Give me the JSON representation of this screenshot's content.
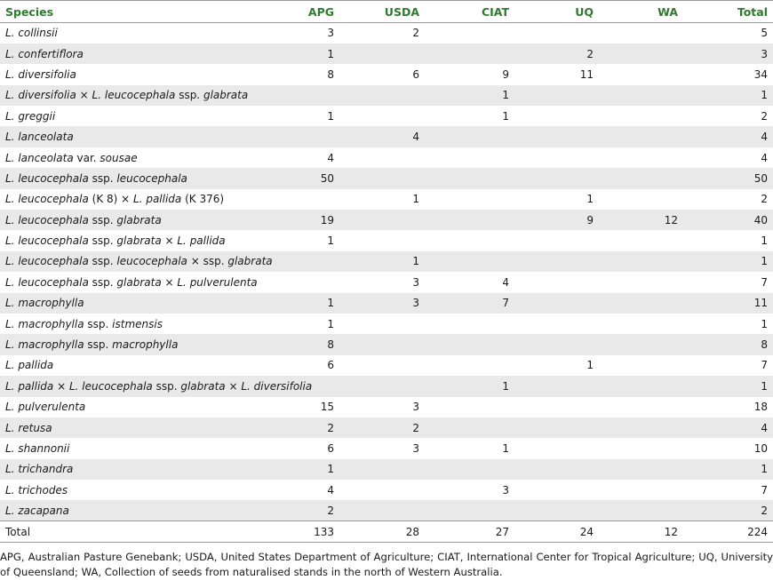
{
  "headers": [
    "Species",
    "APG",
    "USDA",
    "CIAT",
    "UQ",
    "WA",
    "Total"
  ],
  "rows": [
    {
      "name": [
        [
          "L. collinsii",
          "i"
        ]
      ],
      "values": [
        "3",
        "2",
        "",
        "",
        "",
        "5"
      ]
    },
    {
      "name": [
        [
          "L. confertiflora",
          "i"
        ]
      ],
      "values": [
        "1",
        "",
        "",
        "2",
        "",
        "3"
      ]
    },
    {
      "name": [
        [
          "L. diversifolia",
          "i"
        ]
      ],
      "values": [
        "8",
        "6",
        "9",
        "11",
        "",
        "34"
      ]
    },
    {
      "name": [
        [
          "L. diversifolia",
          "i"
        ],
        [
          " × ",
          "n"
        ],
        [
          "L. leucocephala",
          "i"
        ],
        [
          " ssp. ",
          "n"
        ],
        [
          "glabrata",
          "i"
        ]
      ],
      "values": [
        "",
        "",
        "1",
        "",
        "",
        "1"
      ]
    },
    {
      "name": [
        [
          "L. greggii",
          "i"
        ]
      ],
      "values": [
        "1",
        "",
        "1",
        "",
        "",
        "2"
      ]
    },
    {
      "name": [
        [
          "L. lanceolata",
          "i"
        ]
      ],
      "values": [
        "",
        "4",
        "",
        "",
        "",
        "4"
      ]
    },
    {
      "name": [
        [
          "L. lanceolata",
          "i"
        ],
        [
          " var. ",
          "n"
        ],
        [
          "sousae",
          "i"
        ]
      ],
      "values": [
        "4",
        "",
        "",
        "",
        "",
        "4"
      ]
    },
    {
      "name": [
        [
          "L. leucocephala",
          "i"
        ],
        [
          " ssp. ",
          "n"
        ],
        [
          "leucocephala",
          "i"
        ]
      ],
      "values": [
        "50",
        "",
        "",
        "",
        "",
        "50"
      ]
    },
    {
      "name": [
        [
          "L. leucocephala",
          "i"
        ],
        [
          " (K 8) × ",
          "n"
        ],
        [
          "L. pallida",
          "i"
        ],
        [
          " (K 376)",
          "n"
        ]
      ],
      "values": [
        "",
        "1",
        "",
        "1",
        "",
        "2"
      ]
    },
    {
      "name": [
        [
          "L. leucocephala",
          "i"
        ],
        [
          " ssp. ",
          "n"
        ],
        [
          "glabrata",
          "i"
        ]
      ],
      "values": [
        "19",
        "",
        "",
        "9",
        "12",
        "40"
      ]
    },
    {
      "name": [
        [
          "L. leucocephala",
          "i"
        ],
        [
          " ssp. ",
          "n"
        ],
        [
          "glabrata",
          "i"
        ],
        [
          " × ",
          "n"
        ],
        [
          "L. pallida",
          "i"
        ]
      ],
      "values": [
        "1",
        "",
        "",
        "",
        "",
        "1"
      ]
    },
    {
      "name": [
        [
          "L. leucocephala",
          "i"
        ],
        [
          " ssp. ",
          "n"
        ],
        [
          "leucocephala",
          "i"
        ],
        [
          " × ssp. ",
          "n"
        ],
        [
          "glabrata",
          "i"
        ]
      ],
      "values": [
        "",
        "1",
        "",
        "",
        "",
        "1"
      ]
    },
    {
      "name": [
        [
          "L. leucocephala",
          "i"
        ],
        [
          " ssp. ",
          "n"
        ],
        [
          "glabrata",
          "i"
        ],
        [
          " × ",
          "n"
        ],
        [
          "L. pulverulenta",
          "i"
        ]
      ],
      "values": [
        "",
        "3",
        "4",
        "",
        "",
        "7"
      ]
    },
    {
      "name": [
        [
          "L. macrophylla",
          "i"
        ]
      ],
      "values": [
        "1",
        "3",
        "7",
        "",
        "",
        "11"
      ]
    },
    {
      "name": [
        [
          "L. macrophylla",
          "i"
        ],
        [
          " ssp. ",
          "n"
        ],
        [
          "istmensis",
          "i"
        ]
      ],
      "values": [
        "1",
        "",
        "",
        "",
        "",
        "1"
      ]
    },
    {
      "name": [
        [
          "L. macrophylla",
          "i"
        ],
        [
          " ssp. ",
          "n"
        ],
        [
          "macrophylla",
          "i"
        ]
      ],
      "values": [
        "8",
        "",
        "",
        "",
        "",
        "8"
      ]
    },
    {
      "name": [
        [
          "L. pallida",
          "i"
        ]
      ],
      "values": [
        "6",
        "",
        "",
        "1",
        "",
        "7"
      ]
    },
    {
      "name": [
        [
          "L. pallida",
          "i"
        ],
        [
          " × ",
          "n"
        ],
        [
          "L. leucocephala",
          "i"
        ],
        [
          " ssp. ",
          "n"
        ],
        [
          "glabrata",
          "i"
        ],
        [
          " × ",
          "n"
        ],
        [
          "L. diversifolia",
          "i"
        ]
      ],
      "values": [
        "",
        "",
        "1",
        "",
        "",
        "1"
      ]
    },
    {
      "name": [
        [
          "L. pulverulenta",
          "i"
        ]
      ],
      "values": [
        "15",
        "3",
        "",
        "",
        "",
        "18"
      ]
    },
    {
      "name": [
        [
          "L. retusa",
          "i"
        ]
      ],
      "values": [
        "2",
        "2",
        "",
        "",
        "",
        "4"
      ]
    },
    {
      "name": [
        [
          "L. shannonii",
          "i"
        ]
      ],
      "values": [
        "6",
        "3",
        "1",
        "",
        "",
        "10"
      ]
    },
    {
      "name": [
        [
          "L. trichandra",
          "i"
        ]
      ],
      "values": [
        "1",
        "",
        "",
        "",
        "",
        "1"
      ]
    },
    {
      "name": [
        [
          "L. trichodes",
          "i"
        ]
      ],
      "values": [
        "4",
        "",
        "3",
        "",
        "",
        "7"
      ]
    },
    {
      "name": [
        [
          "L. zacapana",
          "i"
        ]
      ],
      "values": [
        "2",
        "",
        "",
        "",
        "",
        "2"
      ]
    }
  ],
  "total_row": {
    "label": "Total",
    "values": [
      "133",
      "28",
      "27",
      "24",
      "12",
      "224"
    ]
  },
  "footnote": "APG, Australian Pasture Genebank; USDA, United States Department of Agriculture; CIAT, International Center for Tropical Agriculture; UQ, University of Queensland; WA, Collection of seeds from naturalised stands in the north of Western Australia.",
  "colors": {
    "header_text": "#2f7a2f",
    "stripe": "#e9e9e9",
    "rule": "#9a9a9a"
  }
}
